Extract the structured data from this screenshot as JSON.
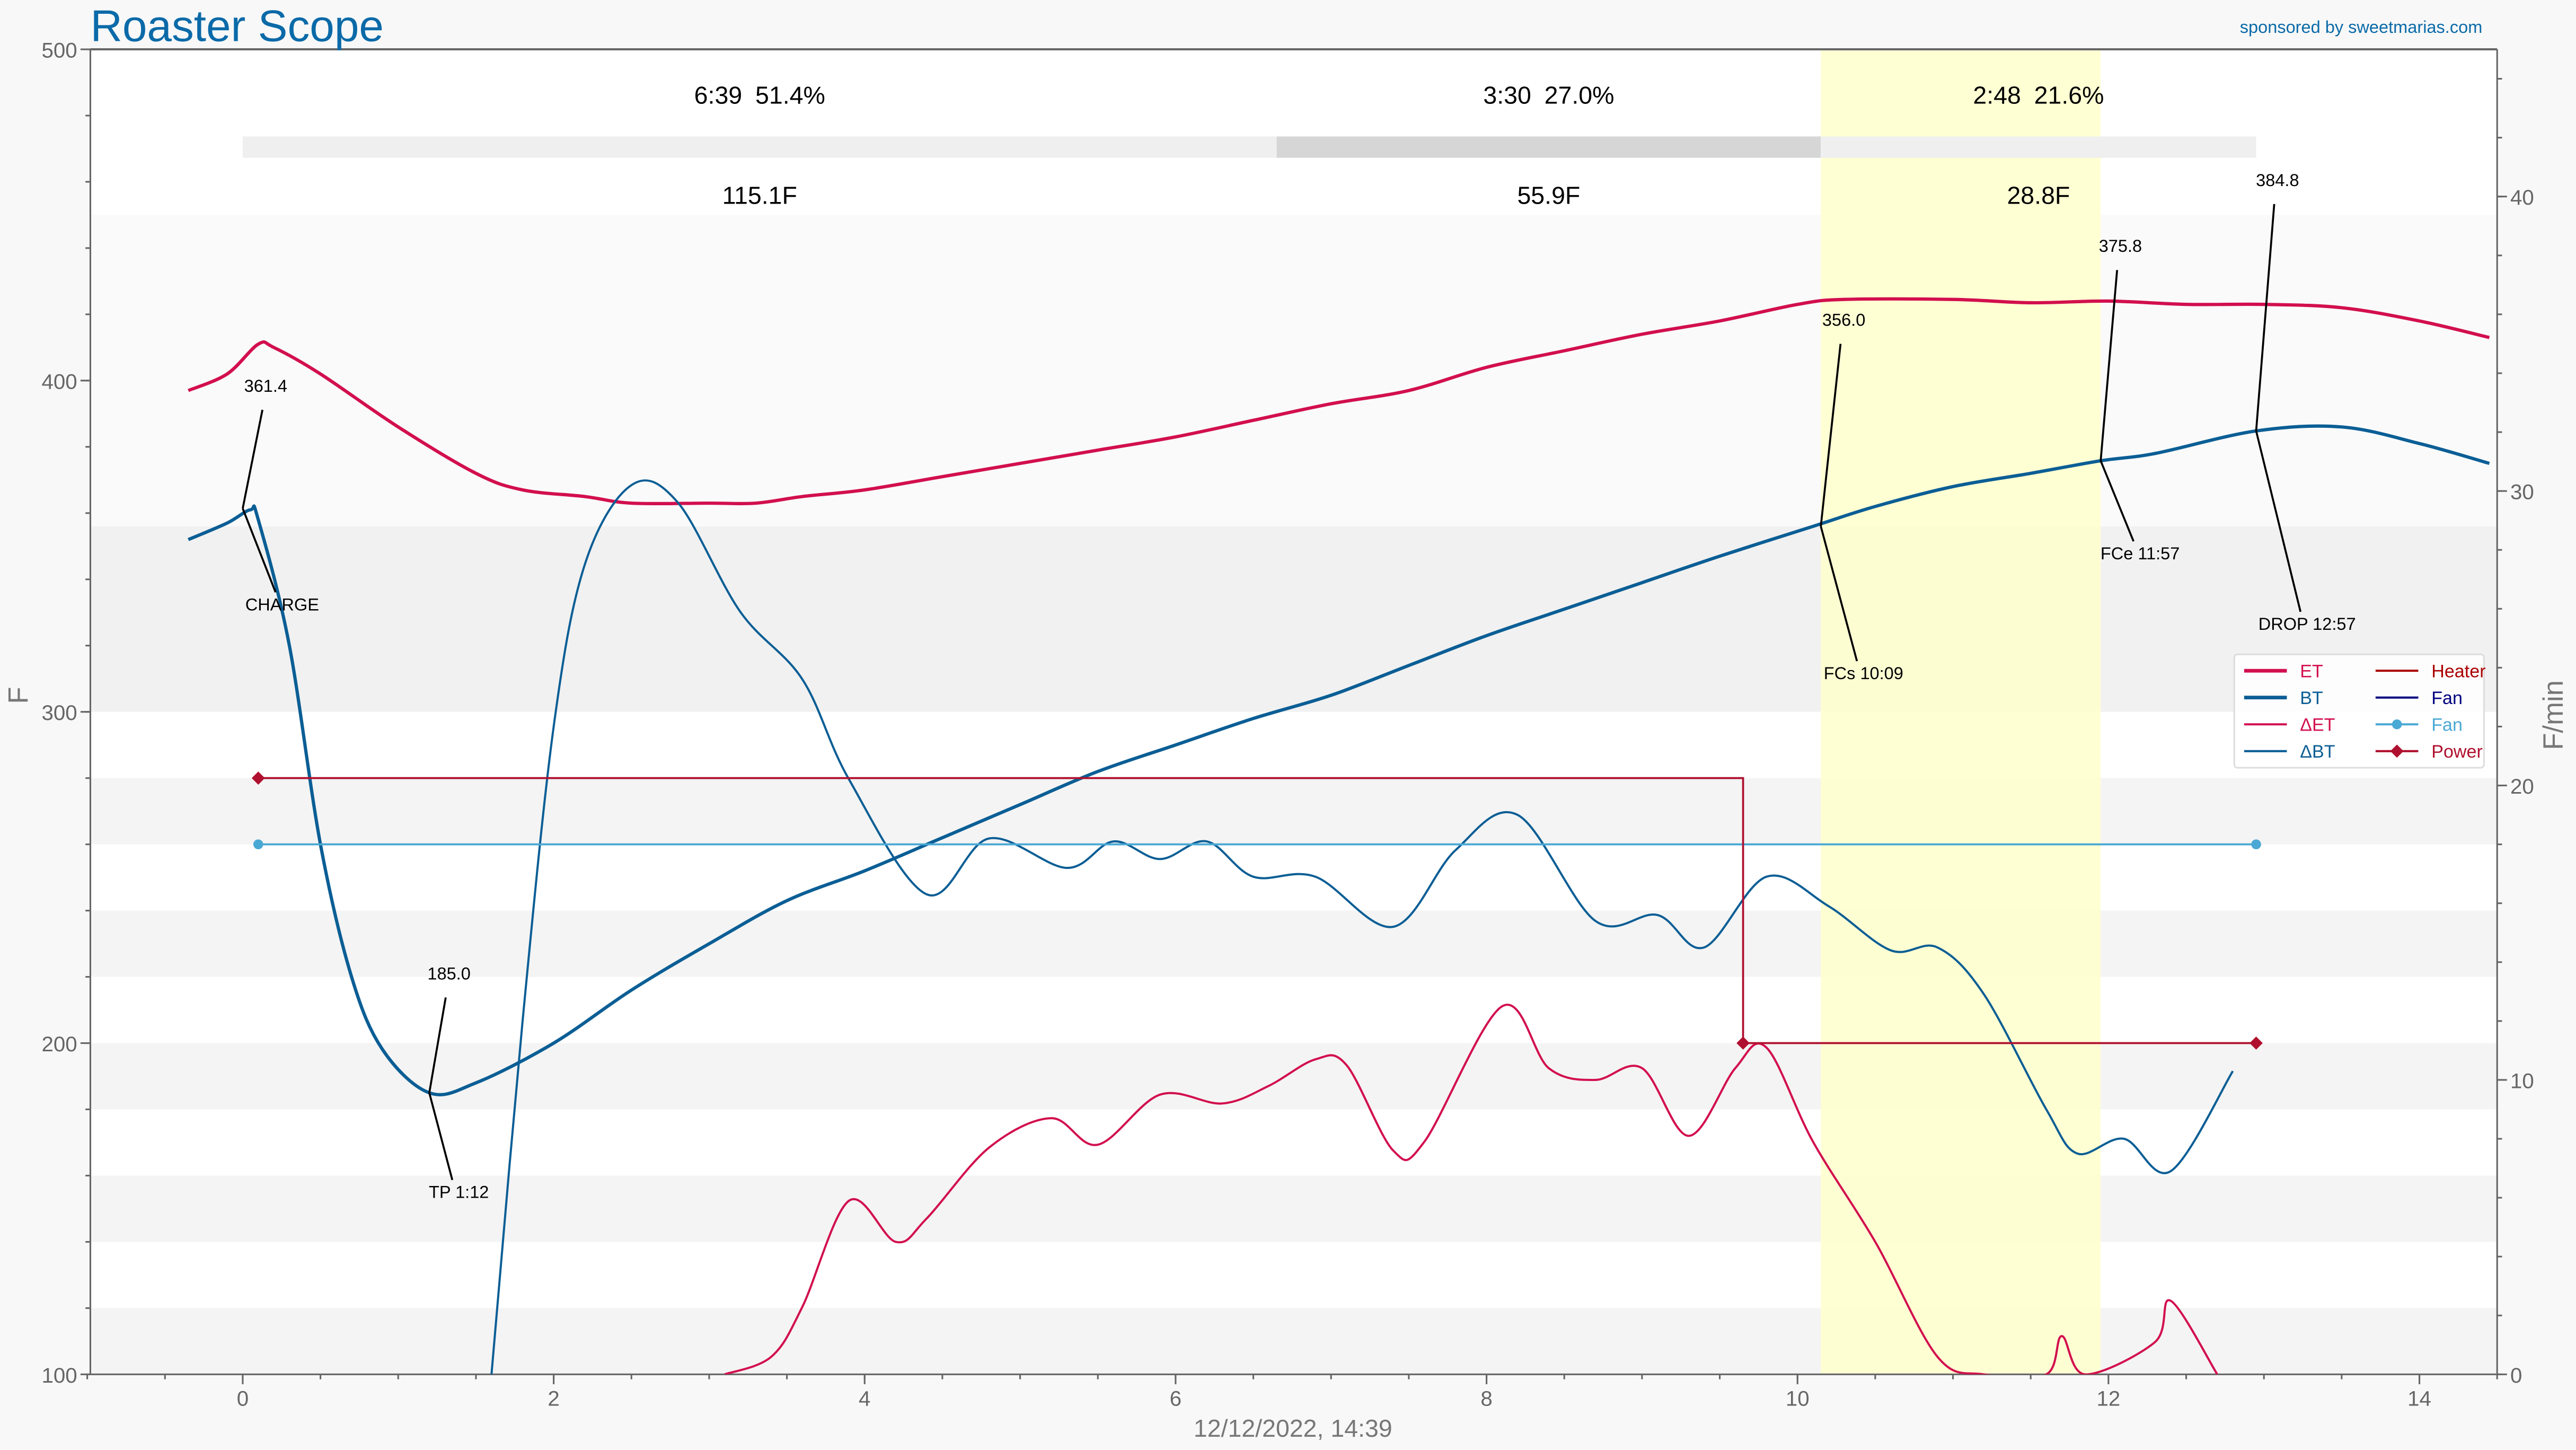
{
  "header": {
    "title": "Roaster Scope",
    "sponsor": "sponsored by sweetmarias.com"
  },
  "colors": {
    "et": "#d20f4e",
    "bt": "#0b5e95",
    "heater": "#aa0000",
    "fan": "#000080",
    "fan_set": "#4aa8d4",
    "power": "#b0102f",
    "title": "#0b6aa8",
    "fc_band": "#ffffcc"
  },
  "chart_data": {
    "type": "line",
    "xlabel": "12/12/2022, 14:39",
    "ylabel": "F",
    "y2label": "F/min",
    "xlim": [
      -0.98,
      14.5
    ],
    "ylim": [
      100,
      500
    ],
    "y2lim": [
      0,
      45
    ],
    "xticks": [
      "0",
      "2",
      "4",
      "6",
      "8",
      "10",
      "12",
      "14"
    ],
    "yticks": [
      "100",
      "200",
      "300",
      "400",
      "500"
    ],
    "y2ticks": [
      "0",
      "10",
      "20",
      "30",
      "40"
    ],
    "legend": {
      "placement": "right",
      "items": [
        "ET",
        "BT",
        "ΔET",
        "ΔBT",
        "Heater",
        "Fan",
        "Fan",
        "Power"
      ]
    },
    "phases": [
      {
        "time": "6:39",
        "pct": "51.4%",
        "delta": "115.1F",
        "start": 0,
        "end": 6.65
      },
      {
        "time": "3:30",
        "pct": "27.0%",
        "delta": "55.9F",
        "start": 6.65,
        "end": 10.15
      },
      {
        "time": "2:48",
        "pct": "21.6%",
        "delta": "28.8F",
        "start": 10.15,
        "end": 12.95
      }
    ],
    "first_crack_band": [
      10.15,
      11.95
    ],
    "series": [
      {
        "name": "ET",
        "axis": "left",
        "x": [
          -0.35,
          -0.1,
          0.1,
          0.2,
          0.5,
          1,
          1.5,
          1.8,
          2.2,
          2.5,
          3,
          3.3,
          3.6,
          4,
          4.5,
          5,
          5.5,
          6,
          6.5,
          7,
          7.5,
          8,
          8.5,
          9,
          9.5,
          10,
          10.3,
          11,
          11.5,
          12,
          12.5,
          13,
          13.5,
          14,
          14.45
        ],
        "y": [
          397,
          402,
          411,
          410,
          402,
          386,
          372,
          367,
          365,
          363,
          363,
          363,
          365,
          367,
          371,
          375,
          379,
          383,
          388,
          393,
          397,
          404,
          409,
          414,
          418,
          423,
          424.5,
          424.5,
          423.5,
          424,
          423,
          423,
          422,
          418,
          413
        ]
      },
      {
        "name": "BT",
        "axis": "left",
        "x": [
          -0.35,
          -0.1,
          0.05,
          0.1,
          0.3,
          0.5,
          0.7,
          0.9,
          1.2,
          1.5,
          2,
          2.5,
          3,
          3.5,
          4,
          4.5,
          5,
          5.5,
          6,
          6.5,
          7,
          7.5,
          8,
          8.5,
          9,
          9.5,
          10.1,
          10.5,
          11,
          11.5,
          11.95,
          12.3,
          12.95,
          13.5,
          14,
          14.45
        ],
        "y": [
          352,
          357,
          361,
          358,
          320,
          260,
          220,
          198,
          185,
          188,
          200,
          216,
          230,
          243,
          252,
          262,
          272,
          282,
          290,
          298,
          305,
          314,
          323,
          331,
          339,
          347,
          356,
          362,
          368,
          372,
          375.8,
          378,
          384.8,
          386,
          381,
          375
        ]
      },
      {
        "name": "ΔET",
        "axis": "right",
        "x": [
          3.1,
          3.4,
          3.6,
          3.9,
          4.2,
          4.4,
          4.8,
          5.2,
          5.5,
          5.9,
          6.3,
          6.6,
          6.9,
          7.1,
          7.4,
          7.6,
          8.1,
          8.4,
          8.7,
          9.0,
          9.3,
          9.6,
          9.8,
          10.1,
          10.5,
          10.9,
          11.2,
          11.6,
          11.7,
          11.85,
          12.3,
          12.4,
          12.7
        ],
        "y": [
          0,
          0.6,
          2.3,
          5.9,
          4.5,
          5.3,
          7.7,
          8.7,
          7.8,
          9.5,
          9.2,
          9.8,
          10.7,
          10.5,
          7.6,
          7.9,
          12.5,
          10.4,
          10.0,
          10.4,
          8.1,
          10.4,
          11.1,
          7.9,
          4.5,
          0.6,
          0,
          0,
          1.3,
          0,
          1.1,
          2.5,
          0
        ]
      },
      {
        "name": "ΔBT",
        "axis": "right",
        "x": [
          1.6,
          1.8,
          2.0,
          2.2,
          2.5,
          2.8,
          3.2,
          3.6,
          3.9,
          4.4,
          4.8,
          5.3,
          5.6,
          5.9,
          6.2,
          6.5,
          6.9,
          7.4,
          7.8,
          8.2,
          8.7,
          9.1,
          9.4,
          9.8,
          10.2,
          10.6,
          10.9,
          11.2,
          11.6,
          11.8,
          12.1,
          12.4,
          12.8
        ],
        "y": [
          0,
          12,
          22,
          27.5,
          30.2,
          29.6,
          25.9,
          23.6,
          20.2,
          16.3,
          18.2,
          17.2,
          18.1,
          17.5,
          18.1,
          16.9,
          16.9,
          15.2,
          17.8,
          19.0,
          15.4,
          15.6,
          14.5,
          16.9,
          15.9,
          14.4,
          14.5,
          12.9,
          9.0,
          7.5,
          8.0,
          6.9,
          10.3
        ]
      },
      {
        "name": "Fan",
        "axis": "left",
        "x": [
          0.1,
          12.95
        ],
        "y": [
          260,
          260
        ]
      },
      {
        "name": "Power",
        "axis": "left",
        "x": [
          0.1,
          9.65,
          9.65,
          12.95
        ],
        "y": [
          280,
          280,
          200,
          200
        ]
      }
    ],
    "annotations": [
      {
        "value": "361.4",
        "event": "CHARGE",
        "t": 0,
        "temp": 361.4
      },
      {
        "value": "185.0",
        "event": "TP 1:12",
        "t": 1.2,
        "temp": 185.0
      },
      {
        "value": "356.0",
        "event": "FCs 10:09",
        "t": 10.15,
        "temp": 356.0
      },
      {
        "value": "375.8",
        "event": "FCe 11:57",
        "t": 11.95,
        "temp": 375.8
      },
      {
        "value": "384.8",
        "event": "DROP 12:57",
        "t": 12.95,
        "temp": 384.8
      }
    ]
  }
}
